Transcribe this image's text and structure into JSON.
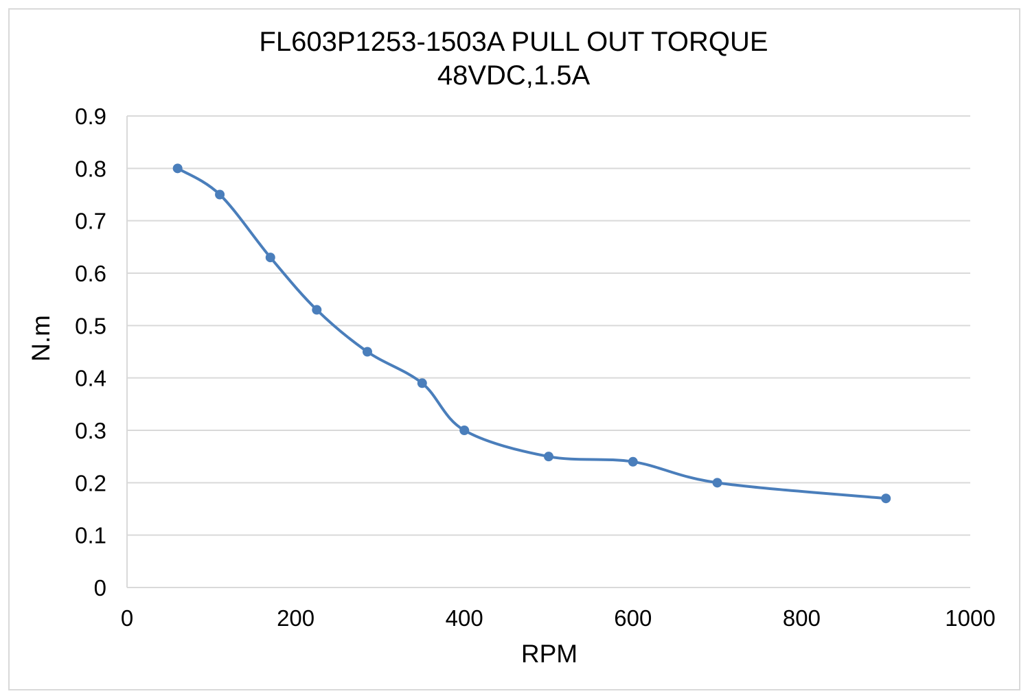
{
  "chart_data": {
    "type": "line",
    "title": "FL603P1253-1503A PULL OUT TORQUE",
    "subtitle": "48VDC,1.5A",
    "xlabel": "RPM",
    "ylabel": "N.m",
    "xlim": [
      0,
      1000
    ],
    "ylim": [
      0,
      0.9
    ],
    "xticks": [
      0,
      200,
      400,
      600,
      800,
      1000
    ],
    "yticks": [
      0,
      0.1,
      0.2,
      0.3,
      0.4,
      0.5,
      0.6,
      0.7,
      0.8,
      0.9
    ],
    "grid": "horizontal",
    "smooth": true,
    "color": "#4a7ebb",
    "series": [
      {
        "x": [
          60,
          110,
          170,
          225,
          285,
          350,
          400,
          500,
          600,
          700,
          900
        ],
        "y": [
          0.8,
          0.75,
          0.63,
          0.53,
          0.45,
          0.39,
          0.3,
          0.25,
          0.24,
          0.2,
          0.17
        ]
      }
    ]
  }
}
